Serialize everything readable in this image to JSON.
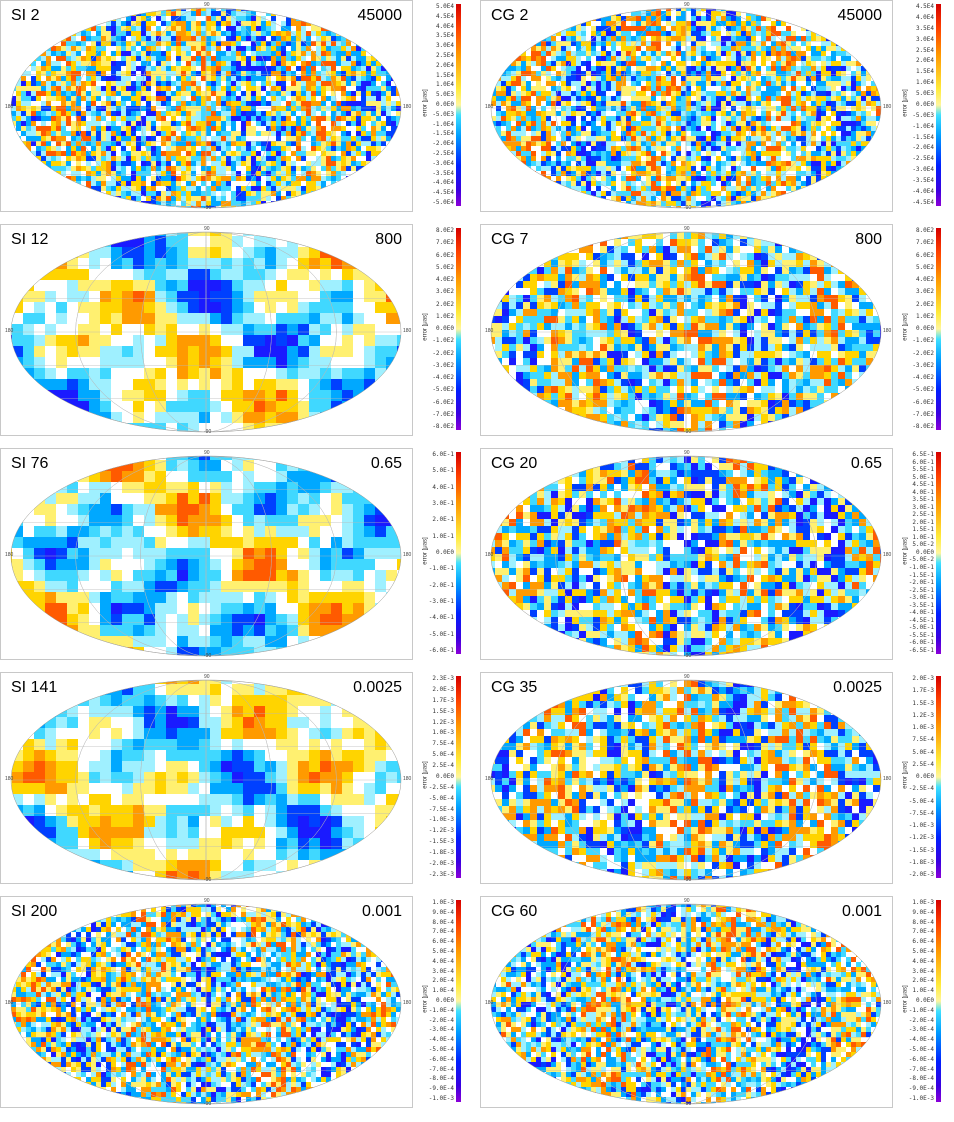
{
  "unit_label": "error [μas]",
  "grid_labels": {
    "top": "90",
    "bottom": "-90",
    "left": "180",
    "right": "180"
  },
  "rows": [
    {
      "left": {
        "label": "SI 2",
        "scale": "45000",
        "seed": 11,
        "mode": "fine"
      },
      "left_ticks": [
        "5.0E4",
        "4.5E4",
        "4.0E4",
        "3.5E4",
        "3.0E4",
        "2.5E4",
        "2.0E4",
        "1.5E4",
        "1.0E4",
        "5.0E3",
        "0.0E0",
        "-5.0E3",
        "-1.0E4",
        "-1.5E4",
        "-2.0E4",
        "-2.5E4",
        "-3.0E4",
        "-3.5E4",
        "-4.0E4",
        "-4.5E4",
        "-5.0E4"
      ],
      "right": {
        "label": "CG 2",
        "scale": "45000",
        "seed": 12,
        "mode": "fine"
      },
      "right_ticks": [
        "4.5E4",
        "4.0E4",
        "3.5E4",
        "3.0E4",
        "2.5E4",
        "2.0E4",
        "1.5E4",
        "1.0E4",
        "5.0E3",
        "0.0E0",
        "-5.0E3",
        "-1.0E4",
        "-1.5E4",
        "-2.0E4",
        "-2.5E4",
        "-3.0E4",
        "-3.5E4",
        "-4.0E4",
        "-4.5E4"
      ]
    },
    {
      "left": {
        "label": "SI 12",
        "scale": "800",
        "seed": 21,
        "mode": "blob"
      },
      "left_ticks": [
        "8.0E2",
        "7.0E2",
        "6.0E2",
        "5.0E2",
        "4.0E2",
        "3.0E2",
        "2.0E2",
        "1.0E2",
        "0.0E0",
        "-1.0E2",
        "-2.0E2",
        "-3.0E2",
        "-4.0E2",
        "-5.0E2",
        "-6.0E2",
        "-7.0E2",
        "-8.0E2"
      ],
      "right": {
        "label": "CG 7",
        "scale": "800",
        "seed": 22,
        "mode": "mid"
      },
      "right_ticks": [
        "8.0E2",
        "7.0E2",
        "6.0E2",
        "5.0E2",
        "4.0E2",
        "3.0E2",
        "2.0E2",
        "1.0E2",
        "0.0E0",
        "-1.0E2",
        "-2.0E2",
        "-3.0E2",
        "-4.0E2",
        "-5.0E2",
        "-6.0E2",
        "-7.0E2",
        "-8.0E2"
      ]
    },
    {
      "left": {
        "label": "SI 76",
        "scale": "0.65",
        "seed": 31,
        "mode": "blob"
      },
      "left_ticks": [
        "6.0E-1",
        "5.0E-1",
        "4.0E-1",
        "3.0E-1",
        "2.0E-1",
        "1.0E-1",
        "0.0E0",
        "-1.0E-1",
        "-2.0E-1",
        "-3.0E-1",
        "-4.0E-1",
        "-5.0E-1",
        "-6.0E-1"
      ],
      "right": {
        "label": "CG 20",
        "scale": "0.65",
        "seed": 32,
        "mode": "mid"
      },
      "right_ticks": [
        "6.5E-1",
        "6.0E-1",
        "5.5E-1",
        "5.0E-1",
        "4.5E-1",
        "4.0E-1",
        "3.5E-1",
        "3.0E-1",
        "2.5E-1",
        "2.0E-1",
        "1.5E-1",
        "1.0E-1",
        "5.0E-2",
        "0.0E0",
        "-5.0E-2",
        "-1.0E-1",
        "-1.5E-1",
        "-2.0E-1",
        "-2.5E-1",
        "-3.0E-1",
        "-3.5E-1",
        "-4.0E-1",
        "-4.5E-1",
        "-5.0E-1",
        "-5.5E-1",
        "-6.0E-1",
        "-6.5E-1"
      ]
    },
    {
      "left": {
        "label": "SI 141",
        "scale": "0.0025",
        "seed": 41,
        "mode": "blob"
      },
      "left_ticks": [
        "2.3E-3",
        "2.0E-3",
        "1.7E-3",
        "1.5E-3",
        "1.2E-3",
        "1.0E-3",
        "7.5E-4",
        "5.0E-4",
        "2.5E-4",
        "0.0E0",
        "-2.5E-4",
        "-5.0E-4",
        "-7.5E-4",
        "-1.0E-3",
        "-1.2E-3",
        "-1.5E-3",
        "-1.8E-3",
        "-2.0E-3",
        "-2.3E-3"
      ],
      "right": {
        "label": "CG 35",
        "scale": "0.0025",
        "seed": 42,
        "mode": "mid"
      },
      "right_ticks": [
        "2.0E-3",
        "1.7E-3",
        "1.5E-3",
        "1.2E-3",
        "1.0E-3",
        "7.5E-4",
        "5.0E-4",
        "2.5E-4",
        "0.0E0",
        "-2.5E-4",
        "-5.0E-4",
        "-7.5E-4",
        "-1.0E-3",
        "-1.2E-3",
        "-1.5E-3",
        "-1.8E-3",
        "-2.0E-3"
      ]
    },
    {
      "left": {
        "label": "SI 200",
        "scale": "0.001",
        "seed": 51,
        "mode": "fine"
      },
      "left_ticks": [
        "1.0E-3",
        "9.0E-4",
        "8.0E-4",
        "7.0E-4",
        "6.0E-4",
        "5.0E-4",
        "4.0E-4",
        "3.0E-4",
        "2.0E-4",
        "1.0E-4",
        "0.0E0",
        "-1.0E-4",
        "-2.0E-4",
        "-3.0E-4",
        "-4.0E-4",
        "-5.0E-4",
        "-6.0E-4",
        "-7.0E-4",
        "-8.0E-4",
        "-9.0E-4",
        "-1.0E-3"
      ],
      "right": {
        "label": "CG 60",
        "scale": "0.001",
        "seed": 52,
        "mode": "fine"
      },
      "right_ticks": [
        "1.0E-3",
        "9.0E-4",
        "8.0E-4",
        "7.0E-4",
        "6.0E-4",
        "5.0E-4",
        "4.0E-4",
        "3.0E-4",
        "2.0E-4",
        "1.0E-4",
        "0.0E0",
        "-1.0E-4",
        "-2.0E-4",
        "-3.0E-4",
        "-4.0E-4",
        "-5.0E-4",
        "-6.0E-4",
        "-7.0E-4",
        "-8.0E-4",
        "-9.0E-4",
        "-1.0E-3"
      ]
    }
  ]
}
